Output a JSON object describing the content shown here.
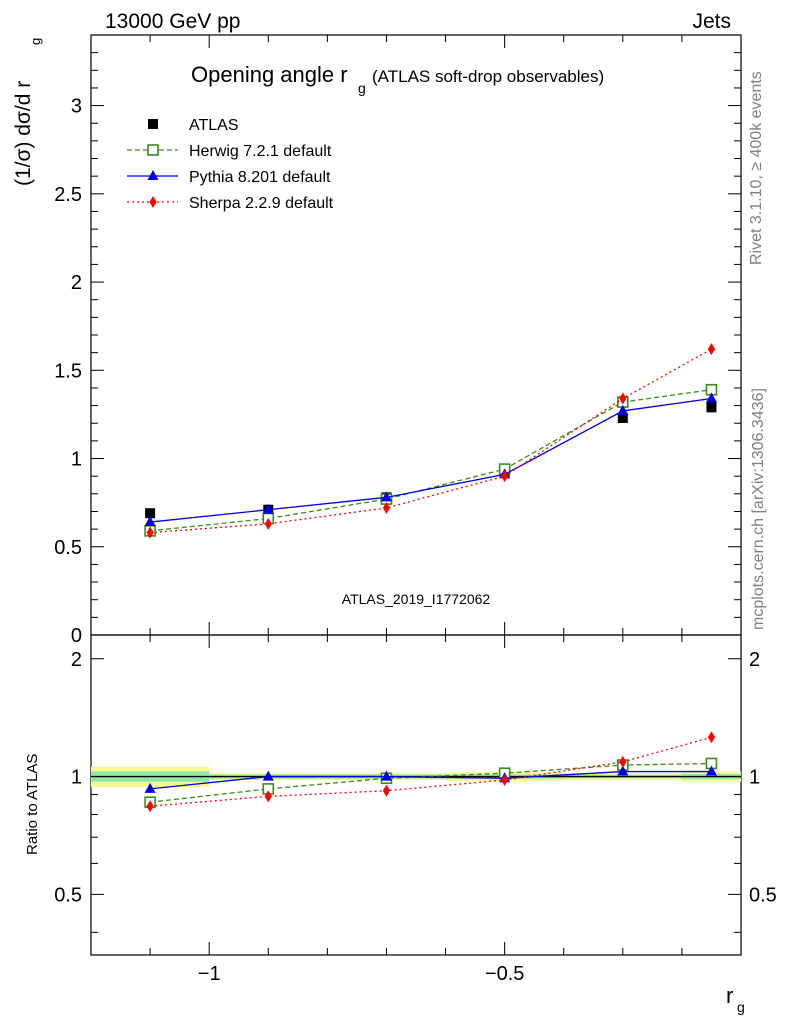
{
  "header": {
    "left": "13000 GeV pp",
    "right": "Jets"
  },
  "side_labels": {
    "rivet": "Rivet 3.1.10, ≥ 400k events",
    "mcplots": "mcplots.cern.ch [arXiv:1306.3436]"
  },
  "colors": {
    "atlas": "#000000",
    "herwig": "#3b8c1b",
    "pythia": "#0000e6",
    "sherpa": "#ff0000",
    "band_outer": "#f8f890",
    "band_inner": "#90e8a8",
    "watermark": "#a0a0a0"
  },
  "chart_data": [
    {
      "type": "line",
      "title_main": "Opening angle r",
      "title_sub": "g",
      "title_suffix": "(ATLAS soft-drop observables)",
      "ylabel": "(1/σ) dσ/d r",
      "ylabel_sub": "g",
      "watermark": "ATLAS_2019_I1772062",
      "xlim": [
        -1.2,
        -0.1
      ],
      "ylim": [
        0,
        3.4
      ],
      "yticks": [
        0,
        0.5,
        1,
        1.5,
        2,
        2.5,
        3
      ],
      "ytick_labels": [
        "0",
        "0.5",
        "1",
        "1.5",
        "2",
        "2.5",
        "3"
      ],
      "x": [
        -1.1,
        -0.9,
        -0.7,
        -0.5,
        -0.3,
        -0.15
      ],
      "series": [
        {
          "name": "ATLAS",
          "marker": "square",
          "values": [
            0.69,
            0.71,
            0.78,
            0.92,
            1.23,
            1.29
          ]
        },
        {
          "name": "Herwig 7.2.1 default",
          "marker": "open-square",
          "line": "dashed",
          "values": [
            0.59,
            0.66,
            0.77,
            0.94,
            1.32,
            1.39
          ]
        },
        {
          "name": "Pythia 8.201 default",
          "marker": "triangle",
          "line": "solid",
          "values": [
            0.64,
            0.71,
            0.78,
            0.91,
            1.27,
            1.34
          ]
        },
        {
          "name": "Sherpa 2.2.9 default",
          "marker": "diamond",
          "line": "dotted",
          "values": [
            0.58,
            0.63,
            0.72,
            0.9,
            1.34,
            1.62
          ]
        }
      ]
    },
    {
      "type": "line",
      "ylabel": "Ratio to ATLAS",
      "xlabel": "r",
      "xlabel_sub": "g",
      "xlim": [
        -1.2,
        -0.1
      ],
      "ylim": [
        0.35,
        2.3
      ],
      "yticks": [
        0.5,
        1,
        2
      ],
      "ytick_labels": [
        "0.5",
        "1",
        "2"
      ],
      "xticks": [
        -1,
        -0.5
      ],
      "xtick_labels": [
        "−1",
        "−0.5"
      ],
      "bins": [
        {
          "lo": -1.2,
          "hi": -1.0,
          "err_outer": 0.06,
          "err_inner": 0.03
        },
        {
          "lo": -1.0,
          "hi": -0.8,
          "err_outer": 0.02,
          "err_inner": 0.012
        },
        {
          "lo": -0.8,
          "hi": -0.6,
          "err_outer": 0.02,
          "err_inner": 0.012
        },
        {
          "lo": -0.6,
          "hi": -0.4,
          "err_outer": 0.025,
          "err_inner": 0.012
        },
        {
          "lo": -0.4,
          "hi": -0.2,
          "err_outer": 0.02,
          "err_inner": 0.01
        },
        {
          "lo": -0.2,
          "hi": -0.1,
          "err_outer": 0.03,
          "err_inner": 0.015
        }
      ],
      "x": [
        -1.1,
        -0.9,
        -0.7,
        -0.5,
        -0.3,
        -0.15
      ],
      "series": [
        {
          "name": "Herwig 7.2.1 default",
          "values": [
            0.86,
            0.93,
            0.99,
            1.02,
            1.07,
            1.08
          ]
        },
        {
          "name": "Pythia 8.201 default",
          "values": [
            0.93,
            1.0,
            1.0,
            0.99,
            1.03,
            1.03
          ]
        },
        {
          "name": "Sherpa 2.2.9 default",
          "values": [
            0.84,
            0.89,
            0.92,
            0.98,
            1.09,
            1.26
          ]
        }
      ]
    }
  ]
}
